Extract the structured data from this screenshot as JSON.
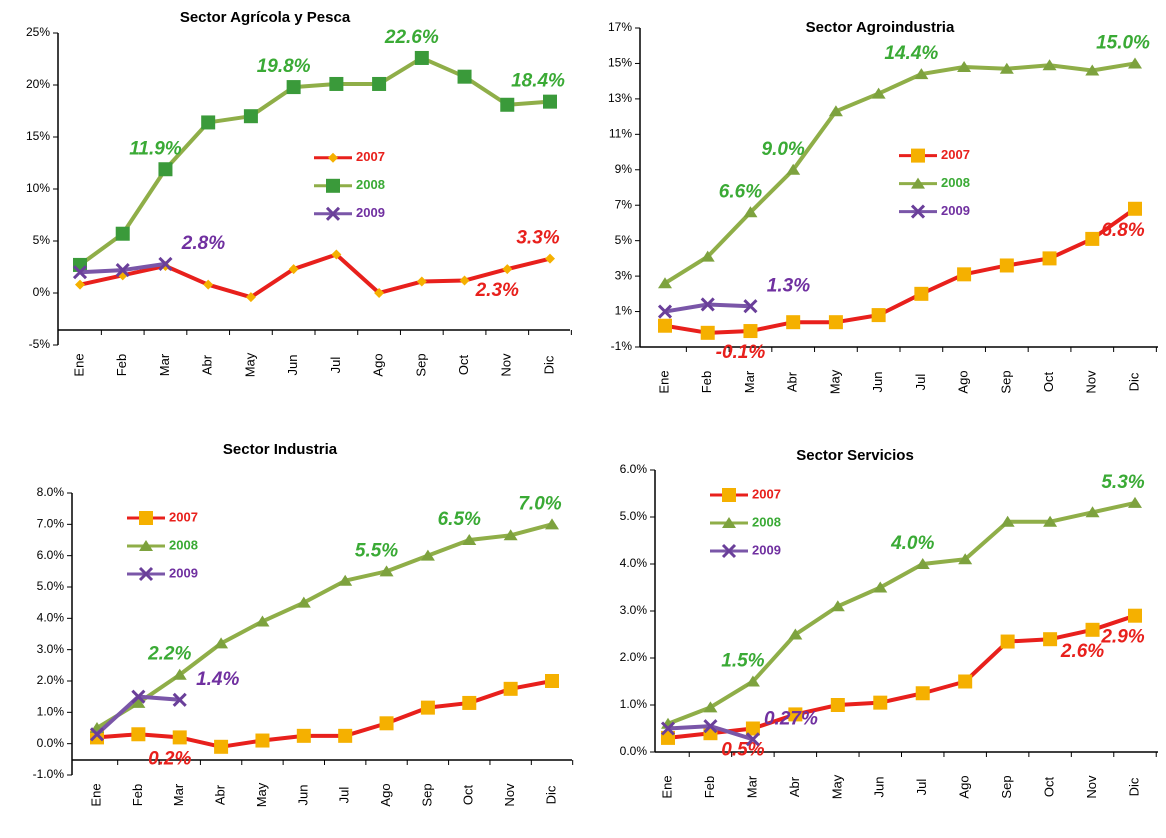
{
  "chart_data": [
    {
      "type": "line",
      "title": "Sector Agrícola y Pesca",
      "categories": [
        "Ene",
        "Feb",
        "Mar",
        "Abr",
        "May",
        "Jun",
        "Jul",
        "Ago",
        "Sep",
        "Oct",
        "Nov",
        "Dic"
      ],
      "ylim": [
        -5,
        25
      ],
      "yticks": [
        {
          "value": -5,
          "label": "-5%"
        },
        {
          "value": 0,
          "label": "0%"
        },
        {
          "value": 5,
          "label": "5%"
        },
        {
          "value": 10,
          "label": "10%"
        },
        {
          "value": 15,
          "label": "15%"
        },
        {
          "value": 20,
          "label": "20%"
        },
        {
          "value": 25,
          "label": "25%"
        }
      ],
      "legend": "center right",
      "series": [
        {
          "name": "2007",
          "color": "#e8201c",
          "marker": "diamond",
          "marker_color": "#f5b000",
          "label_color": "#e8201c",
          "values": [
            0.8,
            1.7,
            2.6,
            0.8,
            -0.4,
            2.3,
            3.7,
            0.0,
            1.1,
            1.2,
            2.3,
            3.3
          ],
          "value_labels": [
            null,
            null,
            null,
            null,
            null,
            null,
            null,
            null,
            null,
            null,
            "2.3%",
            "3.3%"
          ]
        },
        {
          "name": "2008",
          "color": "#8fae48",
          "marker": "square",
          "marker_color": "#3a9a3a",
          "label_color": "#3aaa35",
          "values": [
            2.7,
            5.7,
            11.9,
            16.4,
            17.0,
            19.8,
            20.1,
            20.1,
            22.6,
            20.8,
            18.1,
            18.4
          ],
          "value_labels": [
            null,
            null,
            "11.9%",
            null,
            null,
            "19.8%",
            null,
            null,
            "22.6%",
            null,
            null,
            "18.4%"
          ]
        },
        {
          "name": "2009",
          "color": "#7a56a8",
          "marker": "x",
          "marker_color": "#6a3f9a",
          "label_color": "#7030a0",
          "values": [
            2.0,
            2.2,
            2.8,
            null,
            null,
            null,
            null,
            null,
            null,
            null,
            null,
            null
          ],
          "value_labels": [
            null,
            null,
            "2.8%",
            null,
            null,
            null,
            null,
            null,
            null,
            null,
            null,
            null
          ]
        }
      ]
    },
    {
      "type": "line",
      "title": "Sector Agroindustria",
      "categories": [
        "Ene",
        "Feb",
        "Mar",
        "Abr",
        "May",
        "Jun",
        "Jul",
        "Ago",
        "Sep",
        "Oct",
        "Nov",
        "Dic"
      ],
      "ylim": [
        -1,
        17
      ],
      "yticks": [
        {
          "value": -1,
          "label": "-1%"
        },
        {
          "value": 1,
          "label": "1%"
        },
        {
          "value": 3,
          "label": "3%"
        },
        {
          "value": 5,
          "label": "5%"
        },
        {
          "value": 7,
          "label": "7%"
        },
        {
          "value": 9,
          "label": "9%"
        },
        {
          "value": 11,
          "label": "11%"
        },
        {
          "value": 13,
          "label": "13%"
        },
        {
          "value": 15,
          "label": "15%"
        },
        {
          "value": 17,
          "label": "17%"
        }
      ],
      "legend": "center right",
      "series": [
        {
          "name": "2007",
          "color": "#e8201c",
          "marker": "square",
          "marker_color": "#f5b000",
          "label_color": "#e8201c",
          "values": [
            0.2,
            -0.2,
            -0.1,
            0.4,
            0.4,
            0.8,
            2.0,
            3.1,
            3.6,
            4.0,
            5.1,
            6.8
          ],
          "value_labels": [
            null,
            null,
            "-0.1%",
            null,
            null,
            null,
            null,
            null,
            null,
            null,
            null,
            "6.8%"
          ]
        },
        {
          "name": "2008",
          "color": "#8fae48",
          "marker": "triangle",
          "marker_color": "#7da23e",
          "label_color": "#3aaa35",
          "values": [
            2.6,
            4.1,
            6.6,
            9.0,
            12.3,
            13.3,
            14.4,
            14.8,
            14.7,
            14.9,
            14.6,
            15.0
          ],
          "value_labels": [
            null,
            null,
            "6.6%",
            "9.0%",
            null,
            null,
            "14.4%",
            null,
            null,
            null,
            null,
            "15.0%"
          ]
        },
        {
          "name": "2009",
          "color": "#7a56a8",
          "marker": "x",
          "marker_color": "#6a3f9a",
          "label_color": "#7030a0",
          "values": [
            1.0,
            1.4,
            1.3,
            null,
            null,
            null,
            null,
            null,
            null,
            null,
            null,
            null
          ],
          "value_labels": [
            null,
            null,
            "1.3%",
            null,
            null,
            null,
            null,
            null,
            null,
            null,
            null,
            null
          ]
        }
      ]
    },
    {
      "type": "line",
      "title": "Sector Industria",
      "categories": [
        "Ene",
        "Feb",
        "Mar",
        "Abr",
        "May",
        "Jun",
        "Jul",
        "Ago",
        "Sep",
        "Oct",
        "Nov",
        "Dic"
      ],
      "ylim": [
        -1,
        8
      ],
      "yticks": [
        {
          "value": -1,
          "label": "-1.0%"
        },
        {
          "value": 0,
          "label": "0.0%"
        },
        {
          "value": 1,
          "label": "1.0%"
        },
        {
          "value": 2,
          "label": "2.0%"
        },
        {
          "value": 3,
          "label": "3.0%"
        },
        {
          "value": 4,
          "label": "4.0%"
        },
        {
          "value": 5,
          "label": "5.0%"
        },
        {
          "value": 6,
          "label": "6.0%"
        },
        {
          "value": 7,
          "label": "7.0%"
        },
        {
          "value": 8,
          "label": "8.0%"
        }
      ],
      "legend": "upper left",
      "series": [
        {
          "name": "2007",
          "color": "#e8201c",
          "marker": "square",
          "marker_color": "#f5b000",
          "label_color": "#e8201c",
          "values": [
            0.2,
            0.3,
            0.2,
            -0.1,
            0.1,
            0.25,
            0.25,
            0.65,
            1.15,
            1.3,
            1.75,
            2.0
          ],
          "value_labels": [
            null,
            null,
            "0.2%",
            null,
            null,
            null,
            null,
            null,
            null,
            null,
            null,
            null
          ]
        },
        {
          "name": "2008",
          "color": "#8fae48",
          "marker": "triangle",
          "marker_color": "#7da23e",
          "label_color": "#3aaa35",
          "values": [
            0.5,
            1.3,
            2.2,
            3.2,
            3.9,
            4.5,
            5.2,
            5.5,
            6.0,
            6.5,
            6.65,
            7.0
          ],
          "value_labels": [
            null,
            null,
            "2.2%",
            null,
            null,
            null,
            null,
            "5.5%",
            null,
            "6.5%",
            null,
            "7.0%"
          ]
        },
        {
          "name": "2009",
          "color": "#7a56a8",
          "marker": "x",
          "marker_color": "#6a3f9a",
          "label_color": "#7030a0",
          "values": [
            0.3,
            1.5,
            1.4,
            null,
            null,
            null,
            null,
            null,
            null,
            null,
            null,
            null
          ],
          "value_labels": [
            null,
            null,
            "1.4%",
            null,
            null,
            null,
            null,
            null,
            null,
            null,
            null,
            null
          ]
        }
      ]
    },
    {
      "type": "line",
      "title": "Sector Servicios",
      "categories": [
        "Ene",
        "Feb",
        "Mar",
        "Abr",
        "May",
        "Jun",
        "Jul",
        "Ago",
        "Sep",
        "Oct",
        "Nov",
        "Dic"
      ],
      "ylim": [
        0,
        6
      ],
      "yticks": [
        {
          "value": 0,
          "label": "0.0%"
        },
        {
          "value": 1,
          "label": "1.0%"
        },
        {
          "value": 2,
          "label": "2.0%"
        },
        {
          "value": 3,
          "label": "3.0%"
        },
        {
          "value": 4,
          "label": "4.0%"
        },
        {
          "value": 5,
          "label": "5.0%"
        },
        {
          "value": 6,
          "label": "6.0%"
        }
      ],
      "legend": "upper left",
      "series": [
        {
          "name": "2007",
          "color": "#e8201c",
          "marker": "square",
          "marker_color": "#f5b000",
          "label_color": "#e8201c",
          "values": [
            0.3,
            0.4,
            0.5,
            0.8,
            1.0,
            1.05,
            1.25,
            1.5,
            2.35,
            2.4,
            2.6,
            2.9
          ],
          "value_labels": [
            null,
            null,
            "0.5%",
            null,
            null,
            null,
            null,
            null,
            null,
            null,
            "2.6%",
            "2.9%"
          ]
        },
        {
          "name": "2008",
          "color": "#8fae48",
          "marker": "triangle",
          "marker_color": "#7da23e",
          "label_color": "#3aaa35",
          "values": [
            0.6,
            0.95,
            1.5,
            2.5,
            3.1,
            3.5,
            4.0,
            4.1,
            4.9,
            4.9,
            5.1,
            5.3
          ],
          "value_labels": [
            null,
            null,
            "1.5%",
            null,
            null,
            null,
            "4.0%",
            null,
            null,
            null,
            null,
            "5.3%"
          ]
        },
        {
          "name": "2009",
          "color": "#7a56a8",
          "marker": "x",
          "marker_color": "#6a3f9a",
          "label_color": "#7030a0",
          "values": [
            0.5,
            0.55,
            0.27,
            null,
            null,
            null,
            null,
            null,
            null,
            null,
            null,
            null
          ],
          "value_labels": [
            null,
            null,
            "0.27%",
            null,
            null,
            null,
            null,
            null,
            null,
            null,
            null,
            null
          ]
        }
      ]
    }
  ]
}
